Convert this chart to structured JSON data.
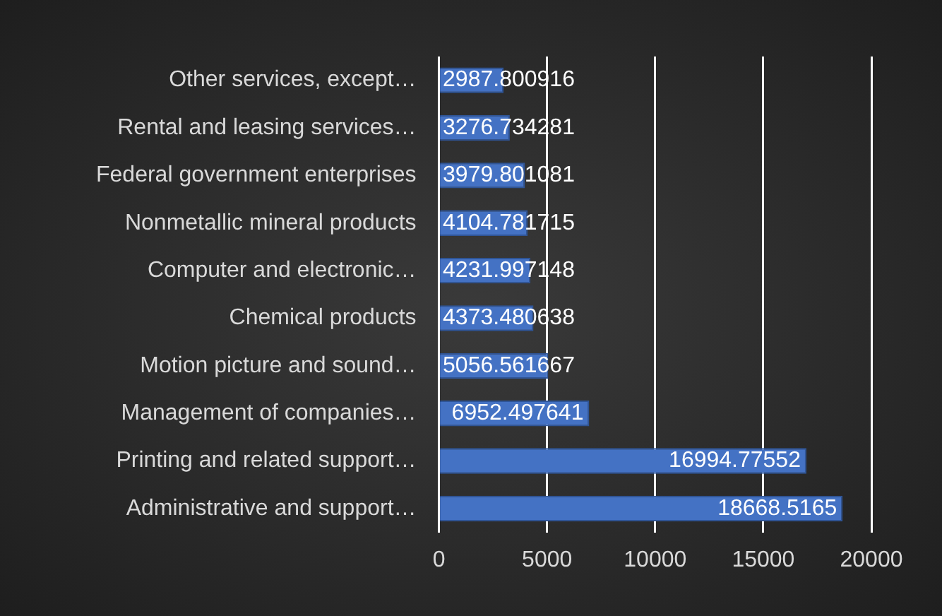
{
  "chart_data": {
    "type": "bar",
    "orientation": "horizontal",
    "categories": [
      "Other services, except…",
      "Rental and leasing services…",
      "Federal government enterprises",
      "Nonmetallic mineral products",
      "Computer and electronic…",
      "Chemical products",
      "Motion picture and sound…",
      "Management of companies…",
      "Printing and related support…",
      "Administrative and support…"
    ],
    "values": [
      2987.800916,
      3276.734281,
      3979.801081,
      4104.781715,
      4231.997148,
      4373.480638,
      5056.561667,
      6952.497641,
      16994.77552,
      18668.5165
    ],
    "color": "#4472c4",
    "xlim": [
      0,
      20000
    ],
    "xticks": [
      0,
      5000,
      10000,
      15000,
      20000
    ],
    "grid": "x",
    "legend": false,
    "data_labels": true
  }
}
